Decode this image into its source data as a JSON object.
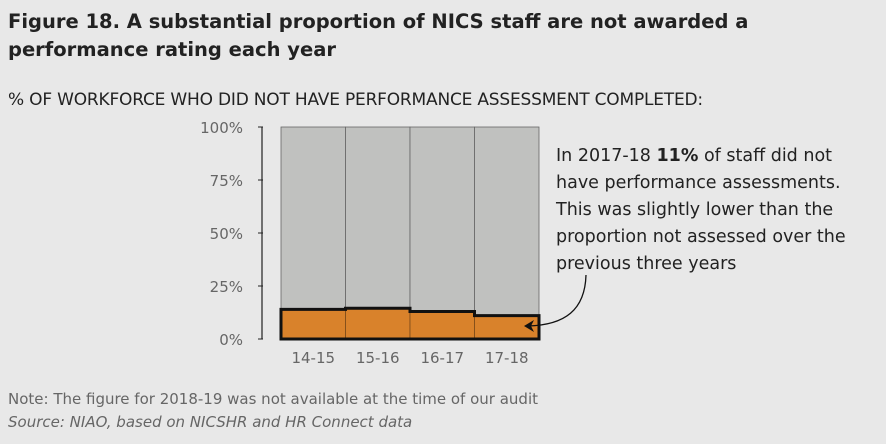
{
  "title": "Figure 18.  A substantial proportion of NICS staff are not awarded a performance rating each year",
  "subtitle": "% OF WORKFORCE WHO DID NOT HAVE PERFORMANCE ASSESSMENT COMPLETED:",
  "annotation": {
    "pre": "In 2017-18 ",
    "bold": "11%",
    "post": " of staff did not have performance assessments. This was slightly lower than the proportion not assessed over the previous three years"
  },
  "note": "Note: The figure for 2018-19 was not available at the time of our audit",
  "source": "Source: NIAO, based on NICSHR and HR Connect data",
  "chart_data": {
    "type": "bar",
    "categories": [
      "14-15",
      "15-16",
      "16-17",
      "17-18"
    ],
    "values": [
      14,
      14.5,
      13,
      11
    ],
    "ylim": [
      0,
      100
    ],
    "yticks": [
      "0%",
      "25%",
      "50%",
      "75%",
      "100%"
    ],
    "colors": {
      "value": "#d9822b",
      "remainder": "#c0c1bf"
    },
    "grid": false
  }
}
